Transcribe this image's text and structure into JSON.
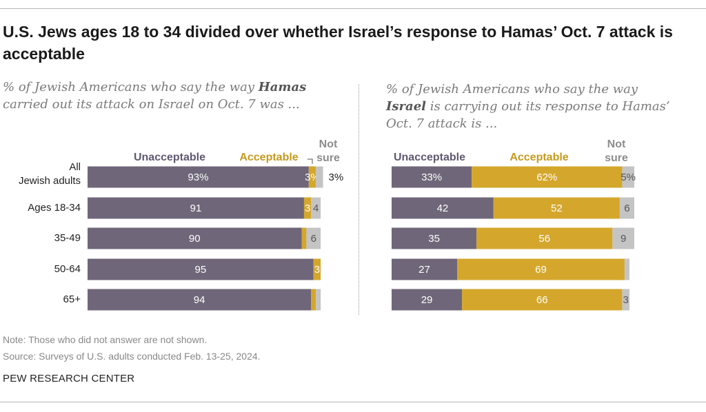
{
  "title": "U.S. Jews ages 18 to 34 divided over whether Israel’s response to Hamas’ Oct. 7 attack is acceptable",
  "left_subtitle": {
    "before": "% of Jewish Americans who say the way ",
    "emphasis": "Hamas",
    "after": " carried out its attack on Israel on Oct. 7 was ..."
  },
  "right_subtitle": {
    "before": "% of Jewish Americans who say the way ",
    "emphasis": "Israel",
    "after": " is carrying out its response to Hamas’ Oct. 7 attack is ..."
  },
  "note": "Note: Those who did not answer are not shown.",
  "source": "Source: Surveys of U.S. adults conducted Feb. 13-25, 2024.",
  "brand": "PEW RESEARCH CENTER",
  "colors": {
    "unacceptable": "#6f6779",
    "acceptable": "#d4a72c",
    "not_sure": "#c4c4c4",
    "header_unacceptable": "#5f5870",
    "header_acceptable": "#c79a1c",
    "header_not_sure": "#8c8c8c"
  },
  "chart_data": [
    {
      "type": "bar",
      "stacked": true,
      "orientation": "horizontal",
      "categories": [
        "All Jewish adults",
        "Ages 18-34",
        "35-49",
        "50-64",
        "65+"
      ],
      "series": [
        {
          "name": "Unacceptable",
          "values": [
            93,
            91,
            90,
            95,
            94
          ],
          "labels": [
            "93%",
            "91",
            "90",
            "95",
            "94"
          ]
        },
        {
          "name": "Acceptable",
          "values": [
            3,
            3,
            2,
            3,
            2
          ],
          "labels": [
            "3%",
            "3",
            "",
            "3",
            ""
          ]
        },
        {
          "name": "Not sure",
          "values": [
            3,
            4,
            6,
            0,
            2
          ],
          "labels": [
            "3%",
            "4",
            "6",
            "",
            ""
          ]
        }
      ],
      "xlim": [
        0,
        100
      ]
    },
    {
      "type": "bar",
      "stacked": true,
      "orientation": "horizontal",
      "categories": [
        "All Jewish adults",
        "Ages 18-34",
        "35-49",
        "50-64",
        "65+"
      ],
      "series": [
        {
          "name": "Unacceptable",
          "values": [
            33,
            42,
            35,
            27,
            29
          ],
          "labels": [
            "33%",
            "42",
            "35",
            "27",
            "29"
          ]
        },
        {
          "name": "Acceptable",
          "values": [
            62,
            52,
            56,
            69,
            66
          ],
          "labels": [
            "62%",
            "52",
            "56",
            "69",
            "66"
          ]
        },
        {
          "name": "Not sure",
          "values": [
            5,
            6,
            9,
            2,
            3
          ],
          "labels": [
            "5%",
            "6",
            "9",
            "",
            "3"
          ]
        }
      ],
      "xlim": [
        0,
        100
      ]
    }
  ]
}
